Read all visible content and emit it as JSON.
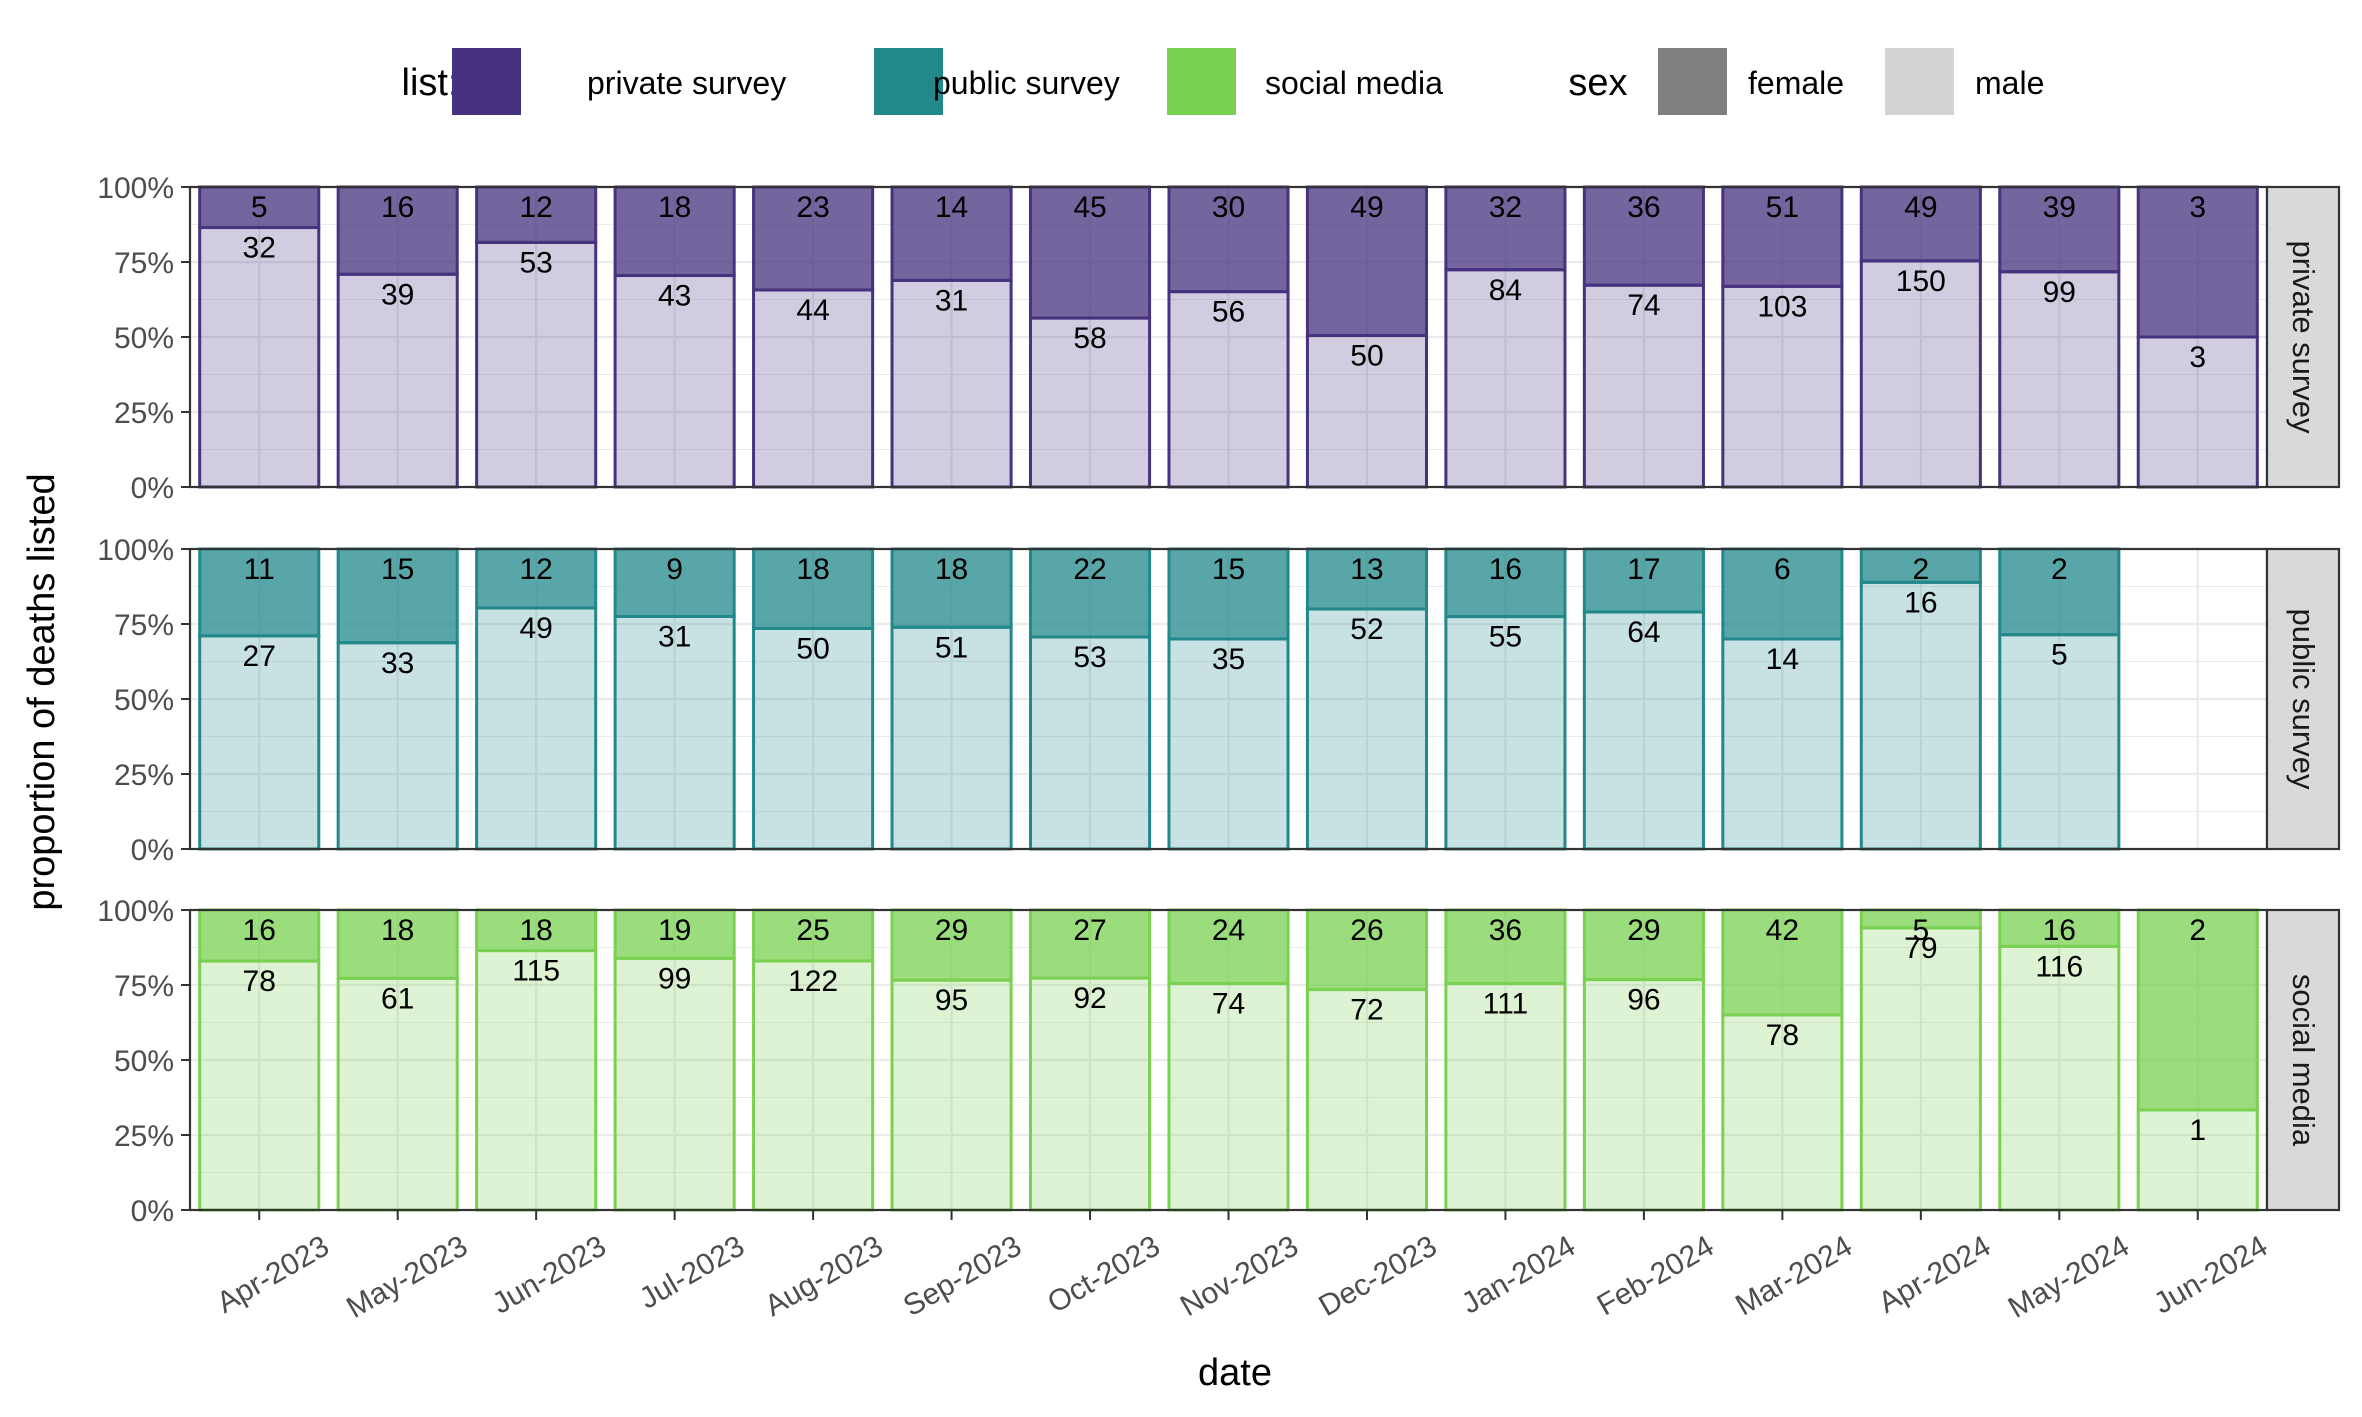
{
  "chart_data": {
    "type": "bar",
    "stacked": true,
    "xlabel": "date",
    "ylabel": "proportion of deaths listed",
    "ylim": [
      0,
      1
    ],
    "y_ticks": [
      "0%",
      "25%",
      "50%",
      "75%",
      "100%"
    ],
    "grid": true,
    "legend_position": "top",
    "legend": {
      "list_title": "list:",
      "list_entries": [
        {
          "label": "private survey",
          "color": "#46327e"
        },
        {
          "label": "public survey",
          "color": "#22888b"
        },
        {
          "label": "social media",
          "color": "#7ad151"
        }
      ],
      "sex_title": "sex",
      "sex_entries": [
        {
          "label": "female",
          "color": "#808080"
        },
        {
          "label": "male",
          "color": "#d3d3d3"
        }
      ]
    },
    "categories": [
      "Apr-2023",
      "May-2023",
      "Jun-2023",
      "Jul-2023",
      "Aug-2023",
      "Sep-2023",
      "Oct-2023",
      "Nov-2023",
      "Dec-2023",
      "Jan-2024",
      "Feb-2024",
      "Mar-2024",
      "Apr-2024",
      "May-2024",
      "Jun-2024"
    ],
    "panels": [
      {
        "name": "private survey",
        "color": "#46327e",
        "female": [
          5,
          16,
          12,
          18,
          23,
          14,
          45,
          30,
          49,
          32,
          36,
          51,
          49,
          39,
          3
        ],
        "male": [
          32,
          39,
          53,
          43,
          44,
          31,
          58,
          56,
          50,
          84,
          74,
          103,
          150,
          99,
          3
        ]
      },
      {
        "name": "public survey",
        "color": "#22888b",
        "female": [
          11,
          15,
          12,
          9,
          18,
          18,
          22,
          15,
          13,
          16,
          17,
          6,
          2,
          2,
          null
        ],
        "male": [
          27,
          33,
          49,
          31,
          50,
          51,
          53,
          35,
          52,
          55,
          64,
          14,
          16,
          5,
          null
        ]
      },
      {
        "name": "social media",
        "color": "#7ad151",
        "female": [
          16,
          18,
          18,
          19,
          25,
          29,
          27,
          24,
          26,
          36,
          29,
          42,
          5,
          16,
          2
        ],
        "male": [
          78,
          61,
          115,
          99,
          122,
          95,
          92,
          74,
          72,
          111,
          96,
          78,
          79,
          116,
          1
        ]
      }
    ]
  }
}
